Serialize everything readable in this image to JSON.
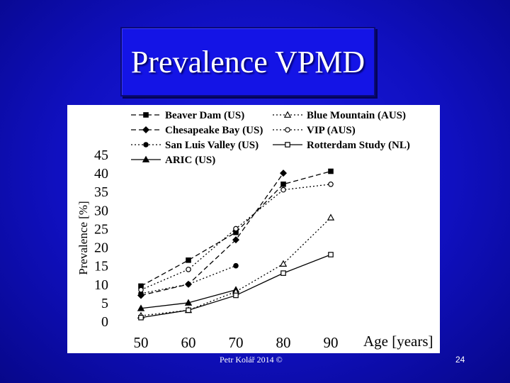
{
  "slide": {
    "title": "Prevalence VPMD",
    "footer": "Petr Kolář 2014 ©",
    "page_number": "24"
  },
  "colors": {
    "background": "#1010c0",
    "title_box": "#1414e6",
    "chart_bg": "#ffffff",
    "ink": "#000000"
  },
  "chart_data": {
    "type": "line",
    "title": "",
    "xlabel": "Age [years]",
    "ylabel": "Prevalence [%]",
    "x": [
      50,
      60,
      70,
      80,
      90
    ],
    "x_tick_labels": [
      "50",
      "60",
      "70",
      "80",
      "90"
    ],
    "y_ticks": [
      0,
      5,
      10,
      15,
      20,
      25,
      30,
      35,
      40,
      45
    ],
    "y_tick_labels": [
      "0",
      "5",
      "10",
      "15",
      "20",
      "25",
      "30",
      "35",
      "40",
      "45"
    ],
    "ylim": [
      0,
      45
    ],
    "xlim": [
      50,
      90
    ],
    "grid": false,
    "legend_position": "top",
    "series": [
      {
        "name": "Beaver Dam (US)",
        "marker": "square-filled",
        "dash": "dashed",
        "x": [
          50,
          60,
          70,
          80,
          90
        ],
        "values": [
          9.5,
          16.5,
          24,
          37,
          40.5
        ]
      },
      {
        "name": "Chesapeake Bay (US)",
        "marker": "diamond-filled",
        "dash": "dashed",
        "x": [
          50,
          60,
          70,
          80
        ],
        "values": [
          7,
          10,
          22,
          40
        ]
      },
      {
        "name": "San Luis Valley (US)",
        "marker": "circle-filled",
        "dash": "dotted",
        "x": [
          50,
          60,
          70
        ],
        "values": [
          7.5,
          10,
          15
        ]
      },
      {
        "name": "ARIC (US)",
        "marker": "triangle-filled",
        "dash": "solid",
        "x": [
          50,
          60,
          70
        ],
        "values": [
          3.5,
          5,
          8.5
        ]
      },
      {
        "name": "Blue Mountain (AUS)",
        "marker": "triangle-open",
        "dash": "dotted",
        "x": [
          50,
          60,
          70,
          80,
          90
        ],
        "values": [
          1.5,
          3,
          8,
          15.5,
          28
        ]
      },
      {
        "name": "VIP (AUS)",
        "marker": "circle-open",
        "dash": "dotted",
        "x": [
          50,
          60,
          70,
          80,
          90
        ],
        "values": [
          8.5,
          14,
          25,
          35.5,
          37
        ]
      },
      {
        "name": "Rotterdam Study (NL)",
        "marker": "square-open",
        "dash": "solid",
        "x": [
          50,
          60,
          70,
          80,
          90
        ],
        "values": [
          1,
          3,
          7,
          13,
          18
        ]
      }
    ]
  }
}
